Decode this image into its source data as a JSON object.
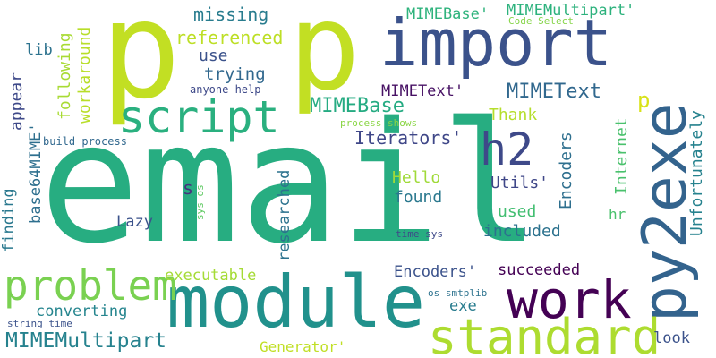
{
  "words": [
    {
      "text": "email",
      "color": "#27ad81"
    },
    {
      "text": "p",
      "color": "#c2df23"
    },
    {
      "text": "p",
      "color": "#c2df23"
    },
    {
      "text": "import",
      "color": "#3b528b"
    },
    {
      "text": "module",
      "color": "#21918c"
    },
    {
      "text": "script",
      "color": "#2ab07f"
    },
    {
      "text": "py2exe",
      "color": "#33638d"
    },
    {
      "text": "work",
      "color": "#440154"
    },
    {
      "text": "standard",
      "color": "#addc30"
    },
    {
      "text": "problem",
      "color": "#7ad151"
    },
    {
      "text": "h2",
      "color": "#3e4989"
    },
    {
      "text": "MIMEMultipart",
      "color": "#26828e"
    },
    {
      "text": "MIMEText",
      "color": "#31688e"
    },
    {
      "text": "MIMEBase",
      "color": "#25ab82"
    },
    {
      "text": "MIMEText'",
      "color": "#471164"
    },
    {
      "text": "MIMEMultipart'",
      "color": "#2db27d"
    },
    {
      "text": "MIMEBase'",
      "color": "#2eb37c"
    },
    {
      "text": "missing",
      "color": "#287c8e"
    },
    {
      "text": "referenced",
      "color": "#bddf26"
    },
    {
      "text": "use",
      "color": "#3b528b"
    },
    {
      "text": "trying",
      "color": "#31688e"
    },
    {
      "text": "lib",
      "color": "#2c728e"
    },
    {
      "text": "appear",
      "color": "#3e4989"
    },
    {
      "text": "following",
      "color": "#a8db34"
    },
    {
      "text": "workaround",
      "color": "#b8de29"
    },
    {
      "text": "Iterators'",
      "color": "#3f4788"
    },
    {
      "text": "Thank",
      "color": "#b5de2b"
    },
    {
      "text": "p",
      "color": "#d8e219"
    },
    {
      "text": "Unfortunately",
      "color": "#26828e"
    },
    {
      "text": "Internet",
      "color": "#4ac16d"
    },
    {
      "text": "Encoders",
      "color": "#2e6f8e"
    },
    {
      "text": "Hello",
      "color": "#a0da39"
    },
    {
      "text": "found",
      "color": "#2a788e"
    },
    {
      "text": "Utils'",
      "color": "#3f4788"
    },
    {
      "text": "used",
      "color": "#42be71"
    },
    {
      "text": "included",
      "color": "#2c728e"
    },
    {
      "text": "hr",
      "color": "#4ac16d"
    },
    {
      "text": "s",
      "color": "#46327e"
    },
    {
      "text": "base64MIME'",
      "color": "#2e6f8e"
    },
    {
      "text": "finding",
      "color": "#2a788e"
    },
    {
      "text": "Lazy",
      "color": "#3b528b"
    },
    {
      "text": "researched",
      "color": "#2c728e"
    },
    {
      "text": "executable",
      "color": "#a5db36"
    },
    {
      "text": "Encoders'",
      "color": "#3b528b"
    },
    {
      "text": "succeeded",
      "color": "#440154"
    },
    {
      "text": "exe",
      "color": "#287c8e"
    },
    {
      "text": "converting",
      "color": "#25858e"
    },
    {
      "text": "Generator'",
      "color": "#c0df25"
    },
    {
      "text": "look",
      "color": "#3b528b"
    },
    {
      "text": "Code Select",
      "color": "#86d549"
    },
    {
      "text": "anyone help",
      "color": "#3e4989"
    },
    {
      "text": "process shows",
      "color": "#8bd646"
    },
    {
      "text": "build process",
      "color": "#31688e"
    },
    {
      "text": "sys os",
      "color": "#5ec962"
    },
    {
      "text": "time sys",
      "color": "#3e4989"
    },
    {
      "text": "os smtplib",
      "color": "#2c728e"
    },
    {
      "text": "string time",
      "color": "#3b528b"
    }
  ]
}
